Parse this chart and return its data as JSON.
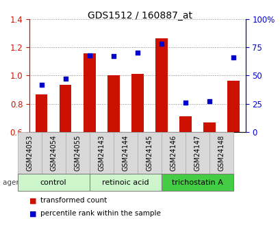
{
  "title": "GDS1512 / 160887_at",
  "categories": [
    "GSM24053",
    "GSM24054",
    "GSM24055",
    "GSM24143",
    "GSM24144",
    "GSM24145",
    "GSM24146",
    "GSM24147",
    "GSM24148"
  ],
  "bar_values": [
    0.865,
    0.935,
    1.155,
    1.0,
    1.01,
    1.265,
    0.71,
    0.67,
    0.965
  ],
  "scatter_values": [
    42,
    47,
    68,
    67,
    70,
    78,
    26,
    27,
    66
  ],
  "bar_color": "#cc1100",
  "scatter_color": "#0000cc",
  "ylim_left": [
    0.6,
    1.4
  ],
  "ylim_right": [
    0,
    100
  ],
  "yticks_left": [
    0.6,
    0.8,
    1.0,
    1.2,
    1.4
  ],
  "yticks_right": [
    0,
    25,
    50,
    75,
    100
  ],
  "yticklabels_right": [
    "0",
    "25",
    "50",
    "75",
    "100%"
  ],
  "groups": [
    {
      "label": "control",
      "start": 0,
      "end": 2,
      "color": "#ccf5cc"
    },
    {
      "label": "retinoic acid",
      "start": 3,
      "end": 5,
      "color": "#ccf5cc"
    },
    {
      "label": "trichostatin A",
      "start": 6,
      "end": 8,
      "color": "#44cc44"
    }
  ],
  "bar_bottom": 0.6,
  "grid_color": "#888888",
  "axis_label_color_left": "#cc1100",
  "axis_label_color_right": "#0000cc",
  "background_color": "#ffffff",
  "sample_box_color": "#d8d8d8",
  "legend_bar": "transformed count",
  "legend_scatter": "percentile rank within the sample"
}
